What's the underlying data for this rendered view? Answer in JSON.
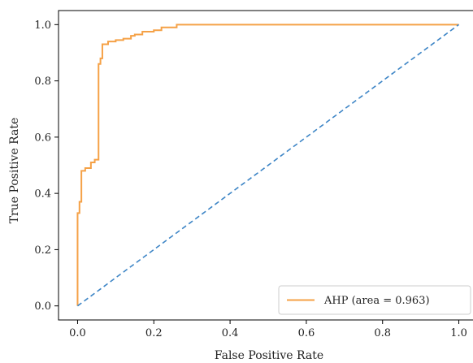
{
  "chart_data": {
    "type": "line",
    "xlabel": "False Positive Rate",
    "ylabel": "True Positive Rate",
    "xlim": [
      0.0,
      1.0
    ],
    "ylim": [
      0.0,
      1.0
    ],
    "xticks": [
      "0.0",
      "0.2",
      "0.4",
      "0.6",
      "0.8",
      "1.0"
    ],
    "yticks": [
      "0.0",
      "0.2",
      "0.4",
      "0.6",
      "0.8",
      "1.0"
    ],
    "grid": false,
    "legend_position": "lower-right",
    "series": [
      {
        "name": "AHP (area = 0.963)",
        "color": "#f5a146",
        "style": "solid",
        "x": [
          0.0,
          0.0,
          0.005,
          0.005,
          0.01,
          0.01,
          0.02,
          0.02,
          0.035,
          0.035,
          0.045,
          0.045,
          0.055,
          0.055,
          0.06,
          0.06,
          0.065,
          0.065,
          0.08,
          0.08,
          0.1,
          0.1,
          0.12,
          0.12,
          0.14,
          0.14,
          0.15,
          0.15,
          0.17,
          0.17,
          0.2,
          0.2,
          0.22,
          0.22,
          0.26,
          0.26,
          1.0
        ],
        "y": [
          0.0,
          0.33,
          0.33,
          0.37,
          0.37,
          0.48,
          0.48,
          0.49,
          0.49,
          0.51,
          0.51,
          0.52,
          0.52,
          0.86,
          0.86,
          0.88,
          0.88,
          0.93,
          0.93,
          0.94,
          0.94,
          0.945,
          0.945,
          0.95,
          0.95,
          0.96,
          0.96,
          0.965,
          0.965,
          0.975,
          0.975,
          0.98,
          0.98,
          0.99,
          0.99,
          1.0,
          1.0
        ]
      },
      {
        "color": "#3d85c6",
        "style": "dashed",
        "x": [
          0.0,
          1.0
        ],
        "y": [
          0.0,
          1.0
        ]
      }
    ]
  }
}
